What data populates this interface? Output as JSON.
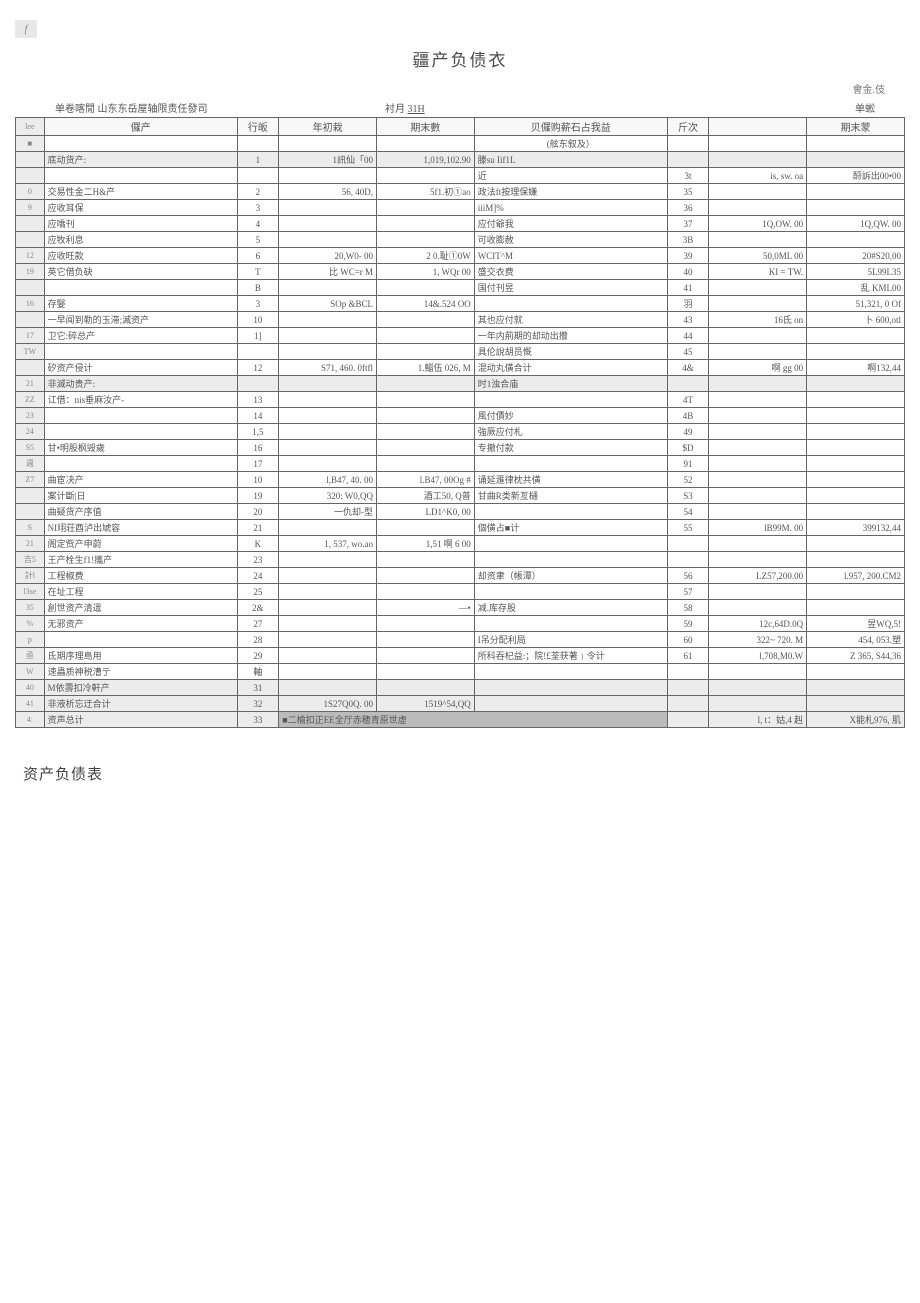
{
  "page_marker": "f",
  "title": "疆产负债衣",
  "unit_top": "會金.伎",
  "header": {
    "company": "单卷喀閒  山东东岳屋轴限责任發司",
    "date_label": "衬月",
    "date_value": "31H",
    "unit": "单蜙"
  },
  "table_head": {
    "left_asset": "儸产",
    "row_no": "行皈",
    "begin": "年初栽",
    "end": "期末數",
    "right_equity": "贝儸购薪石占我益",
    "row_no2": "斤次",
    "end2": "期末蒙",
    "sub_equity": "(舷东叙及）"
  },
  "rows": [
    {
      "idx": "",
      "l": "底动货产:",
      "r": "1",
      "v1": "1訊仙「00",
      "v2": "1,019,102.90",
      "m": "滕su Iif1L",
      "r2": "",
      "v3": "",
      "v4": ""
    },
    {
      "idx": "",
      "l": "",
      "r": "",
      "v1": "",
      "v2": "",
      "m": "近",
      "r2": "3t",
      "v3": "is, sw. oa",
      "v4": "酹訴出00•00"
    },
    {
      "idx": "0",
      "l": "交易性金二H&产",
      "r": "2",
      "v1": "56,   40D,",
      "v2": "5f1.初①ao",
      "m": "政法ft按理保嫌",
      "r2": "35",
      "v3": "",
      "v4": ""
    },
    {
      "idx": "9",
      "l": "应收耳保",
      "r": "3",
      "v1": "",
      "v2": "",
      "m": "iiiM]%",
      "r2": "36",
      "v3": "",
      "v4": ""
    },
    {
      "idx": "",
      "l": "应嘺刊",
      "r": "4",
      "v1": "",
      "v2": "",
      "m": "应付爺我",
      "r2": "37",
      "v3": "1Q,OW. 00",
      "v4": "1Q,QW. 00"
    },
    {
      "idx": "",
      "l": "应牧利息",
      "r": "5",
      "v1": "",
      "v2": "",
      "m": "可收膨赦",
      "r2": "3B",
      "v3": "",
      "v4": ""
    },
    {
      "idx": "12",
      "l": "应收旺款",
      "r": "6",
      "v1": "20,W0- 00",
      "v2": "2 0.耻①0W",
      "m": "WCIT^M",
      "r2": "39",
      "v3": "50,0ML 00",
      "v4": "20#S20,00"
    },
    {
      "idx": "19",
      "l": "英它借负砄",
      "r": "T",
      "v1": "比 WC=r M",
      "v2": "1, WQr 00",
      "m": "盛交衣费",
      "r2": "40",
      "v3": "KI =    TW.",
      "v4": "5L99L35"
    },
    {
      "idx": "",
      "l": "",
      "r": "B",
      "v1": "",
      "v2": "",
      "m": "国付刊昱",
      "r2": "41",
      "v3": "",
      "v4": "乱 KML00"
    },
    {
      "idx": "16",
      "l": "存嫛",
      "r": "3",
      "v1": "SOp   &BCL",
      "v2": "14&.524 OO",
      "m": "",
      "r2": "羽",
      "v3": "",
      "v4": "51,321, 0 Of"
    },
    {
      "idx": "",
      "l": "一早闻到勒的玉滞;滅资产",
      "r": "10",
      "v1": "",
      "v2": "",
      "m": "其也应付就",
      "r2": "43",
      "v3": "16氐 on",
      "v4": "卜 600,otl"
    },
    {
      "idx": "17",
      "l": "卫它:碎总产",
      "r": "1]",
      "v1": "",
      "v2": "",
      "m": "一年内荊期的却动出攢",
      "r2": "44",
      "v3": "",
      "v4": ""
    },
    {
      "idx": "TW",
      "l": "",
      "r": "",
      "v1": "",
      "v2": "",
      "m": "具伦說胡员慨",
      "r2": "45",
      "v3": "",
      "v4": ""
    },
    {
      "idx": "",
      "l": "矽资产侵计",
      "r": "12",
      "v1": "S71, 460. 0ftfl",
      "v2": "1.鯔伍 026, M",
      "m": "混动丸僙合计",
      "r2": "4&",
      "v3": "啊 gg 00",
      "v4": "啊132,44"
    },
    {
      "idx": "21",
      "l": "非滅动贵产:",
      "r": "",
      "v1": "",
      "v2": "",
      "m": "时1浊合庙",
      "r2": "",
      "v3": "",
      "v4": ""
    },
    {
      "idx": "ZZ",
      "l": "讧借：nis垂麻汝产-",
      "r": "13",
      "v1": "",
      "v2": "",
      "m": "",
      "r2": "4T",
      "v3": "",
      "v4": ""
    },
    {
      "idx": "23",
      "l": "",
      "r": "14",
      "v1": "",
      "v2": "",
      "m": "風付債妙",
      "r2": "4B",
      "v3": "",
      "v4": ""
    },
    {
      "idx": "24",
      "l": "",
      "r": "1,5",
      "v1": "",
      "v2": "",
      "m": "強厥应付札",
      "r2": "49",
      "v3": "",
      "v4": ""
    },
    {
      "idx": "S5",
      "l": "甘•明股枫毁歲",
      "r": "16",
      "v1": "",
      "v2": "",
      "m": "专撤付款",
      "r2": "$D",
      "v3": "",
      "v4": ""
    },
    {
      "idx": "週",
      "l": "",
      "r": "17",
      "v1": "",
      "v2": "",
      "m": "",
      "r2": "91",
      "v3": "",
      "v4": ""
    },
    {
      "idx": "Z7",
      "l": "曲宦决产",
      "r": "10",
      "v1": "l,B47, 40. 00",
      "v2": "l.B47, 00Og #",
      "m": "诵延滙律枕共僙",
      "r2": "52",
      "v3": "",
      "v4": ""
    },
    {
      "idx": "",
      "l": "案计斷|日",
      "r": "19",
      "v1": "320: W0,QQ",
      "v2": "酒工50, Q普",
      "m": "甘曲R类新亙樋",
      "r2": "S3",
      "v3": "",
      "v4": ""
    },
    {
      "idx": "",
      "l": "曲疑货产序值",
      "r": "20",
      "v1": "一仇却-型",
      "v2": "LD1^K0, 00",
      "m": "",
      "r2": "54",
      "v3": "",
      "v4": ""
    },
    {
      "idx": "S",
      "l": "NI翊荘酉泸出虓容",
      "r": "21",
      "v1": "",
      "v2": "",
      "m": "個僙占■计",
      "r2": "55",
      "v3": "lB99M. 00",
      "v4": "399132,44"
    },
    {
      "idx": "21",
      "l": "阁定赀产申蔚",
      "r": "K",
      "v1": "1, 537, wo.ao",
      "v2": "1,51   啊 6 00",
      "m": "",
      "r2": "",
      "v3": "",
      "v4": ""
    },
    {
      "idx": "吉5",
      "l": "王产栓生f1!攜产",
      "r": "23",
      "v1": "",
      "v2": "",
      "m": "",
      "r2": "",
      "v3": "",
      "v4": ""
    },
    {
      "idx": "計l",
      "l": "工程椒费",
      "r": "24",
      "v1": "",
      "v2": "",
      "m": "却资聿（帳潭）",
      "r2": "56",
      "v3": "LZ57,200.00",
      "v4": "l.957, 200.CM2"
    },
    {
      "idx": "l3se",
      "l": "在址工程",
      "r": "25",
      "v1": "",
      "v2": "",
      "m": "",
      "r2": "57",
      "v3": "",
      "v4": ""
    },
    {
      "idx": "35",
      "l": "創世资产清邅",
      "r": "2&",
      "v1": "",
      "v2": "—•",
      "m": "减.库存股",
      "r2": "58",
      "v3": "",
      "v4": ""
    },
    {
      "idx": "%",
      "l": "无邪资产",
      "r": "27",
      "v1": "",
      "v2": "",
      "m": "",
      "r2": "59",
      "v3": "12c,64D.0Q",
      "v4": "昱WQ,5!"
    },
    {
      "idx": "p",
      "l": "",
      "r": "28",
      "v1": "",
      "v2": "",
      "m": "I吊分配利局",
      "r2": "60",
      "v3": "322~ 720. M",
      "v4": "454, 053.塑"
    },
    {
      "idx": "亟",
      "l": "氐期序理島用",
      "r": "29",
      "v1": "",
      "v2": "",
      "m": "所科吞杞益:；院!£荃获著﹜令计",
      "r2": "61",
      "v3": "l,708,M0.W",
      "v4": "Z 365, S44,36"
    },
    {
      "idx": "W",
      "l": "速蟲质神税漕亍",
      "r": "軸",
      "v1": "",
      "v2": "",
      "m": "",
      "r2": "",
      "v3": "",
      "v4": ""
    },
    {
      "idx": "40",
      "l": "M依壽扣冷軒产",
      "r": "31",
      "v1": "",
      "v2": "",
      "m": "",
      "r2": "",
      "v3": "",
      "v4": ""
    },
    {
      "idx": "41",
      "l": "非液析忘迂合计",
      "r": "32",
      "v1": "1S27Q0Q. 00",
      "v2": "1519^54,QQ",
      "m": "",
      "r2": "",
      "v3": "",
      "v4": ""
    },
    {
      "idx": "4:",
      "l": "资声总计",
      "r": "33",
      "v1": "",
      "v2": "",
      "m": "",
      "r2": "",
      "v3": "l, t：姑,4 赳",
      "v4": "X能札976,  肌"
    }
  ],
  "footer_gray_text": "■二榆扣正EE全厅赤穂青原世虛",
  "footer_caption": "资产负债表"
}
